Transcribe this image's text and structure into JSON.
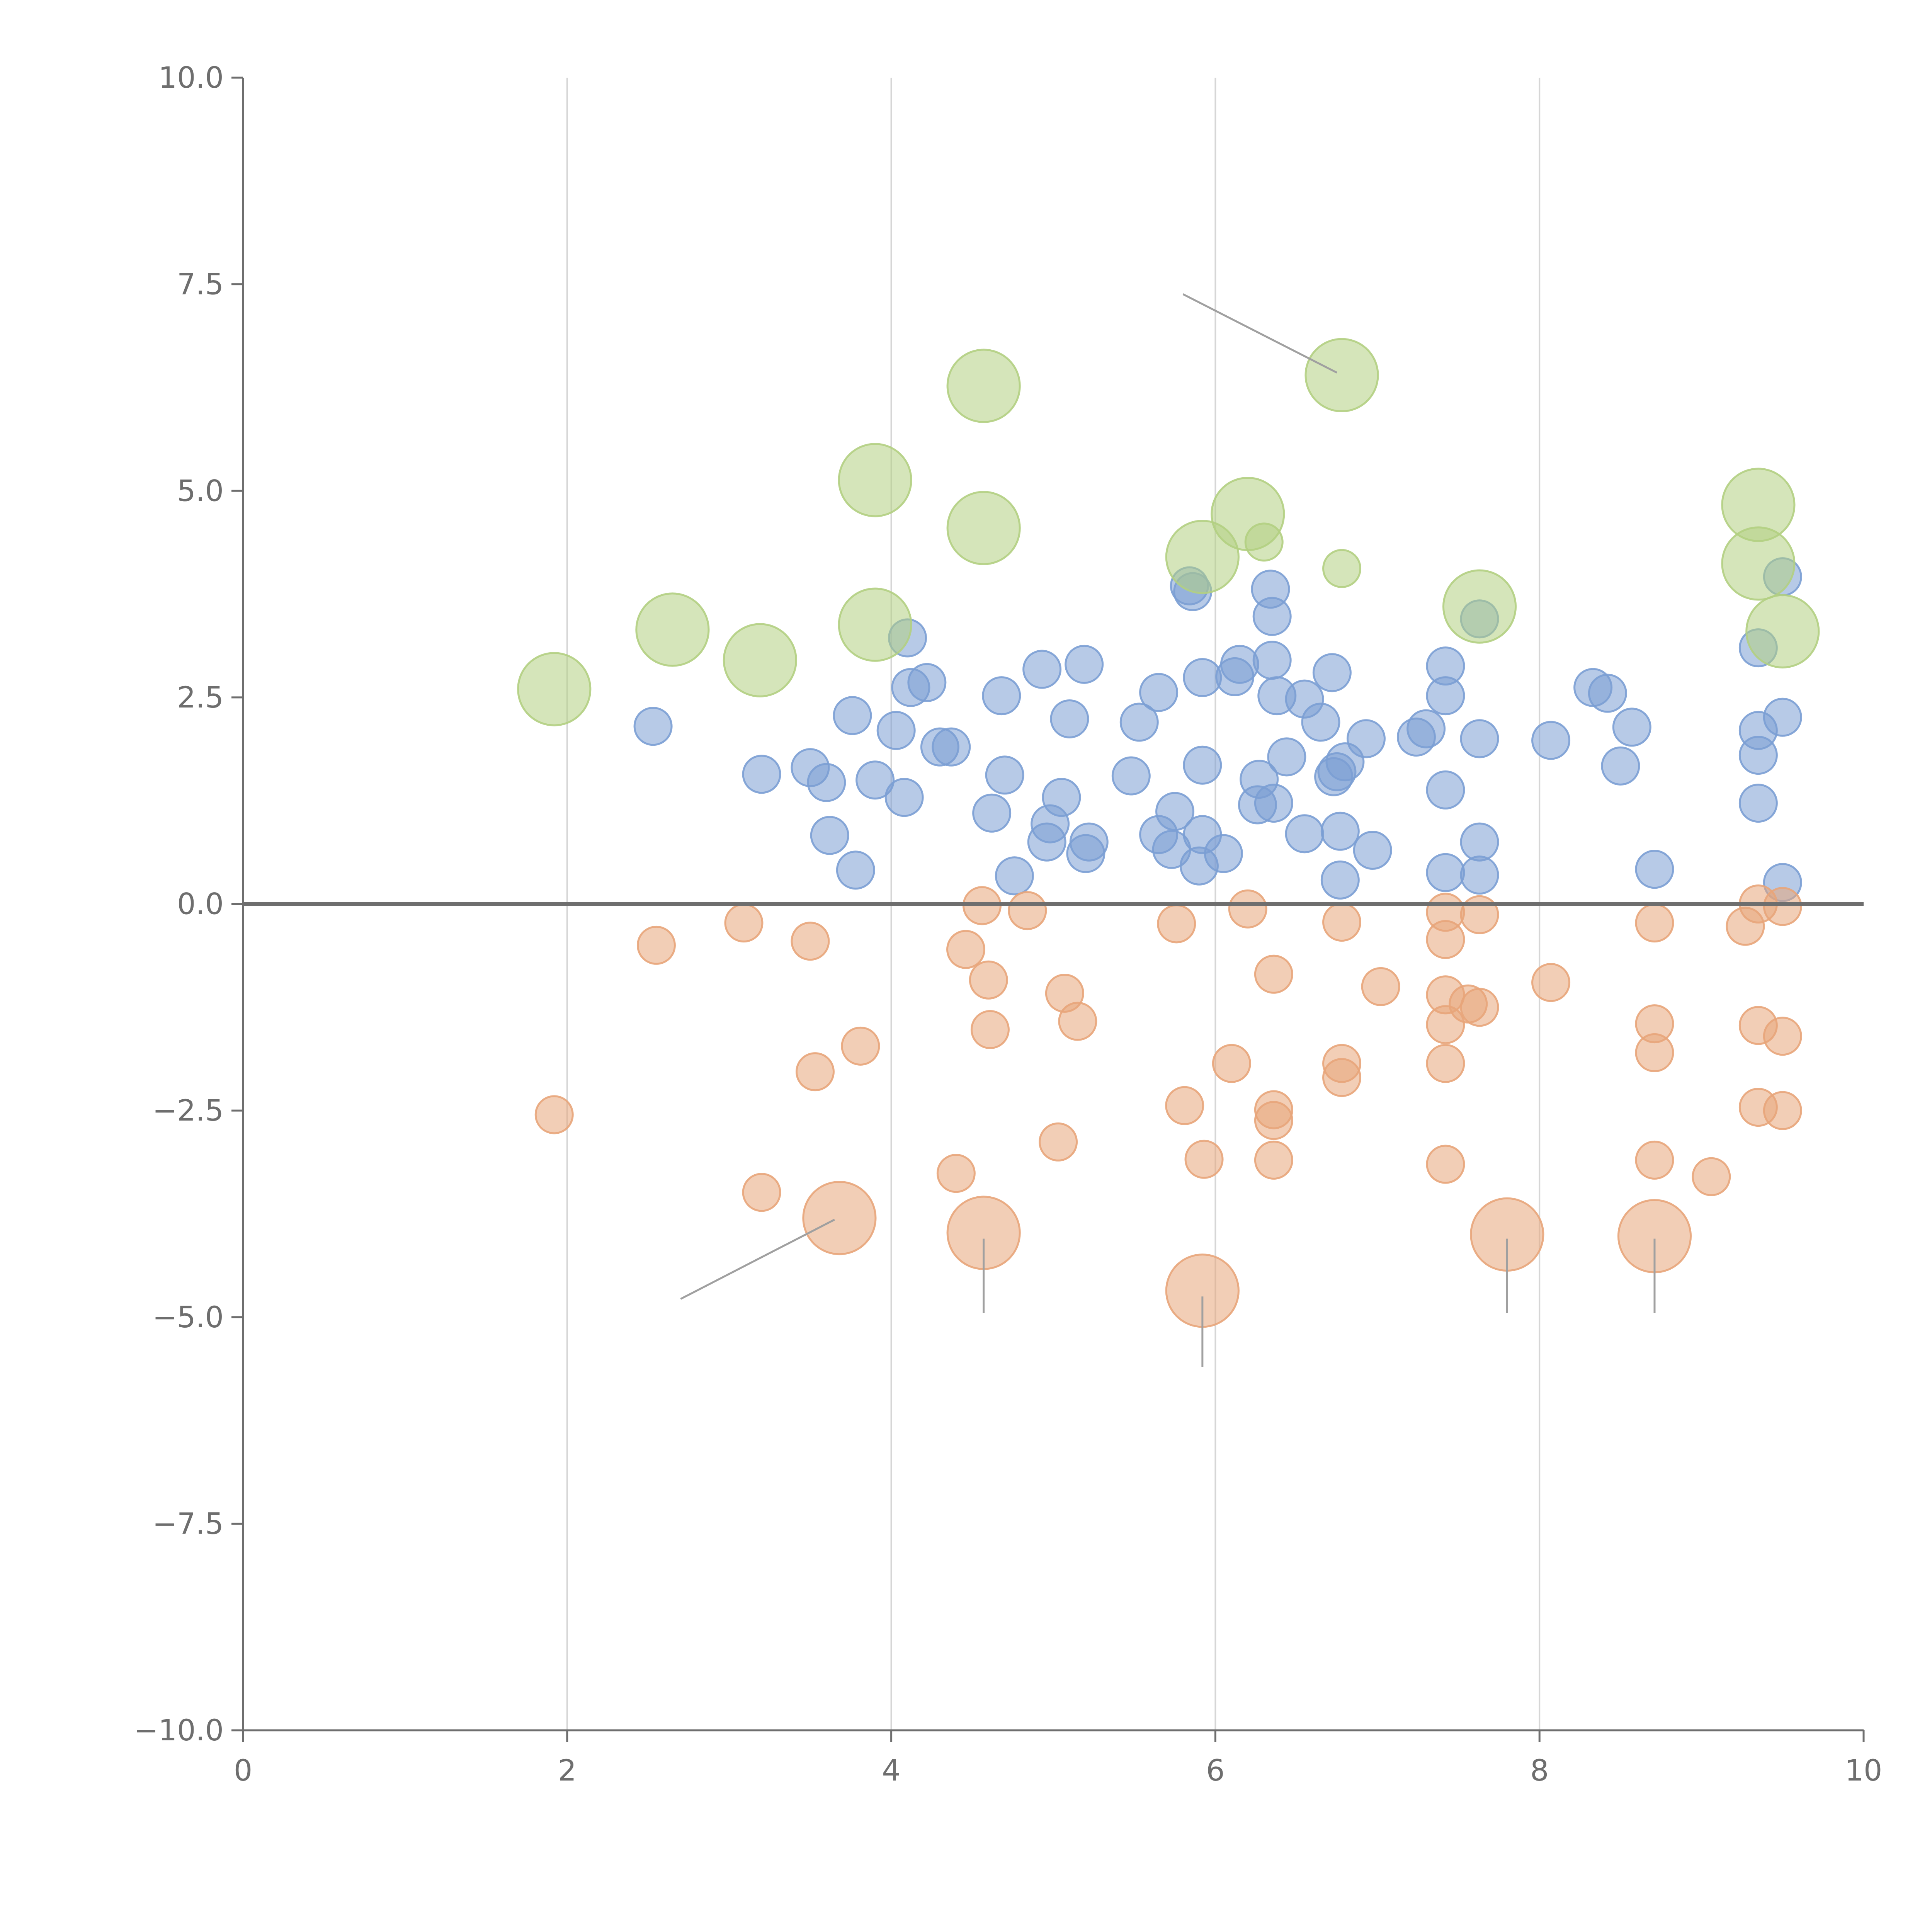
{
  "chart_data": {
    "type": "scatter",
    "title": "",
    "xlabel": "",
    "ylabel": "",
    "xlim": [
      0,
      10
    ],
    "ylim": [
      -10,
      10
    ],
    "grid": "x-only",
    "xticks": [
      0,
      2,
      4,
      6,
      8,
      10
    ],
    "xtick_labels": [
      "0",
      "2",
      "4",
      "6",
      "8",
      "10"
    ],
    "yticks": [
      10,
      7.5,
      5,
      2.5,
      0,
      -2.5,
      -5,
      -7.5,
      -10
    ],
    "ytick_labels": [
      "10.0",
      "7.5",
      "5.0",
      "2.5",
      "0.0",
      "−2.5",
      "−5.0",
      "−7.5",
      "−10.0"
    ],
    "colors": {
      "axis": "#6e6e6e",
      "grid": "#d6d6d6",
      "zero_line": "#6e6e6e",
      "tick_text": "#6e6e6e",
      "callout_line": "#a0a0a0"
    },
    "series": [
      {
        "name": "positive",
        "color": "#7b9fd4",
        "size": 1,
        "points": [
          [
            2.53,
            2.15
          ],
          [
            3.2,
            1.57
          ],
          [
            3.5,
            1.65
          ],
          [
            3.6,
            1.47
          ],
          [
            3.62,
            0.83
          ],
          [
            3.76,
            2.28
          ],
          [
            3.78,
            0.41
          ],
          [
            3.9,
            1.5
          ],
          [
            4.03,
            2.1
          ],
          [
            4.08,
            1.29
          ],
          [
            4.1,
            3.22
          ],
          [
            4.12,
            2.62
          ],
          [
            4.22,
            2.68
          ],
          [
            4.3,
            1.9
          ],
          [
            4.37,
            1.9
          ],
          [
            4.62,
            1.1
          ],
          [
            4.68,
            2.52
          ],
          [
            4.7,
            1.56
          ],
          [
            4.76,
            0.34
          ],
          [
            4.93,
            2.84
          ],
          [
            4.96,
            0.75
          ],
          [
            4.98,
            0.97
          ],
          [
            5.05,
            1.29
          ],
          [
            5.1,
            2.24
          ],
          [
            5.19,
            2.9
          ],
          [
            5.2,
            0.61
          ],
          [
            5.22,
            0.75
          ],
          [
            5.48,
            1.55
          ],
          [
            5.53,
            2.2
          ],
          [
            5.65,
            0.84
          ],
          [
            5.65,
            2.56
          ],
          [
            5.73,
            0.66
          ],
          [
            5.75,
            1.12
          ],
          [
            5.84,
            3.85
          ],
          [
            5.86,
            3.78
          ],
          [
            5.9,
            0.46
          ],
          [
            5.92,
            0.84
          ],
          [
            5.92,
            1.68
          ],
          [
            5.92,
            2.74
          ],
          [
            6.05,
            0.61
          ],
          [
            6.12,
            2.75
          ],
          [
            6.15,
            2.9
          ],
          [
            6.26,
            1.2
          ],
          [
            6.27,
            1.51
          ],
          [
            6.34,
            3.81
          ],
          [
            6.35,
            3.48
          ],
          [
            6.35,
            2.95
          ],
          [
            6.36,
            1.22
          ],
          [
            6.38,
            2.52
          ],
          [
            6.44,
            1.78
          ],
          [
            6.55,
            0.85
          ],
          [
            6.55,
            2.48
          ],
          [
            6.65,
            2.2
          ],
          [
            6.72,
            2.8
          ],
          [
            6.73,
            1.54
          ],
          [
            6.75,
            1.6
          ],
          [
            6.77,
            0.88
          ],
          [
            6.77,
            0.29
          ],
          [
            6.8,
            1.72
          ],
          [
            6.93,
            2.0
          ],
          [
            6.97,
            0.65
          ],
          [
            7.24,
            2.02
          ],
          [
            7.3,
            2.12
          ],
          [
            7.42,
            0.38
          ],
          [
            7.42,
            1.38
          ],
          [
            7.42,
            2.52
          ],
          [
            7.42,
            2.88
          ],
          [
            7.63,
            3.45
          ],
          [
            7.63,
            2.0
          ],
          [
            7.63,
            0.75
          ],
          [
            7.63,
            0.35
          ],
          [
            8.07,
            1.98
          ],
          [
            8.33,
            2.62
          ],
          [
            8.42,
            2.55
          ],
          [
            8.5,
            1.67
          ],
          [
            8.57,
            2.14
          ],
          [
            8.71,
            0.42
          ],
          [
            9.35,
            3.1
          ],
          [
            9.35,
            2.1
          ],
          [
            9.35,
            1.8
          ],
          [
            9.35,
            1.22
          ],
          [
            9.5,
            3.96
          ],
          [
            9.5,
            2.26
          ],
          [
            9.5,
            0.26
          ]
        ]
      },
      {
        "name": "negative",
        "color": "#e8a57a",
        "size": 1,
        "points": [
          [
            1.92,
            -2.55
          ],
          [
            2.55,
            -0.5
          ],
          [
            3.09,
            -0.23
          ],
          [
            3.2,
            -3.49
          ],
          [
            3.5,
            -0.45
          ],
          [
            3.53,
            -2.03
          ],
          [
            3.81,
            -1.72
          ],
          [
            4.4,
            -3.26
          ],
          [
            4.46,
            -0.55
          ],
          [
            4.56,
            -0.02
          ],
          [
            4.6,
            -0.92
          ],
          [
            4.61,
            -1.52
          ],
          [
            4.84,
            -0.08
          ],
          [
            5.03,
            -2.88
          ],
          [
            5.07,
            -1.08
          ],
          [
            5.15,
            -1.42
          ],
          [
            5.76,
            -0.24
          ],
          [
            5.81,
            -2.44
          ],
          [
            5.93,
            -3.09
          ],
          [
            6.1,
            -1.93
          ],
          [
            6.2,
            -0.06
          ],
          [
            6.36,
            -0.85
          ],
          [
            6.36,
            -2.49
          ],
          [
            6.36,
            -2.62
          ],
          [
            6.36,
            -3.1
          ],
          [
            6.78,
            -0.22
          ],
          [
            6.78,
            -1.93
          ],
          [
            6.78,
            -2.1
          ],
          [
            7.02,
            -1.0
          ],
          [
            7.42,
            -0.1
          ],
          [
            7.42,
            -0.43
          ],
          [
            7.42,
            -1.1
          ],
          [
            7.42,
            -1.46
          ],
          [
            7.42,
            -1.93
          ],
          [
            7.42,
            -3.15
          ],
          [
            7.56,
            -1.21
          ],
          [
            7.63,
            -0.13
          ],
          [
            7.63,
            -1.25
          ],
          [
            8.07,
            -0.95
          ],
          [
            8.71,
            -0.23
          ],
          [
            8.71,
            -1.45
          ],
          [
            8.71,
            -1.8
          ],
          [
            8.71,
            -3.1
          ],
          [
            9.06,
            -3.3
          ],
          [
            9.27,
            -0.27
          ],
          [
            9.35,
            0.0
          ],
          [
            9.35,
            -1.47
          ],
          [
            9.35,
            -2.46
          ],
          [
            9.5,
            -0.03
          ],
          [
            9.5,
            -1.6
          ],
          [
            9.5,
            -2.5
          ]
        ]
      },
      {
        "name": "highlight-positive",
        "color": "#b3cf82",
        "size": 2,
        "points": [
          [
            1.92,
            2.6
          ],
          [
            2.65,
            3.32
          ],
          [
            3.19,
            2.95
          ],
          [
            3.9,
            5.13
          ],
          [
            3.9,
            3.38
          ],
          [
            4.57,
            6.27
          ],
          [
            4.57,
            4.55
          ],
          [
            5.92,
            4.2
          ],
          [
            6.2,
            4.72
          ],
          [
            6.78,
            6.4
          ],
          [
            7.63,
            3.6
          ],
          [
            9.35,
            4.83
          ],
          [
            9.35,
            4.12
          ],
          [
            9.5,
            3.3
          ]
        ]
      },
      {
        "name": "highlight-positive-small",
        "color": "#b3cf82",
        "size": 1,
        "points": [
          [
            6.3,
            4.38
          ],
          [
            6.78,
            4.06
          ]
        ]
      },
      {
        "name": "highlight-negative",
        "color": "#e8a57a",
        "size": 2,
        "points": [
          [
            3.68,
            -3.8
          ],
          [
            4.57,
            -3.98
          ],
          [
            5.92,
            -4.68
          ],
          [
            7.8,
            -4.0
          ],
          [
            8.71,
            -4.02
          ]
        ]
      }
    ],
    "callout_lines": [
      {
        "from": [
          3.65,
          -3.82
        ],
        "to": [
          2.7,
          -4.78
        ]
      },
      {
        "from": [
          4.57,
          -4.05
        ],
        "to": [
          4.57,
          -4.95
        ]
      },
      {
        "from": [
          5.92,
          -4.75
        ],
        "to": [
          5.92,
          -5.6
        ]
      },
      {
        "from": [
          7.8,
          -4.05
        ],
        "to": [
          7.8,
          -4.95
        ]
      },
      {
        "from": [
          8.71,
          -4.05
        ],
        "to": [
          8.71,
          -4.95
        ]
      },
      {
        "from": [
          6.75,
          6.43
        ],
        "to": [
          5.8,
          7.38
        ]
      }
    ]
  }
}
